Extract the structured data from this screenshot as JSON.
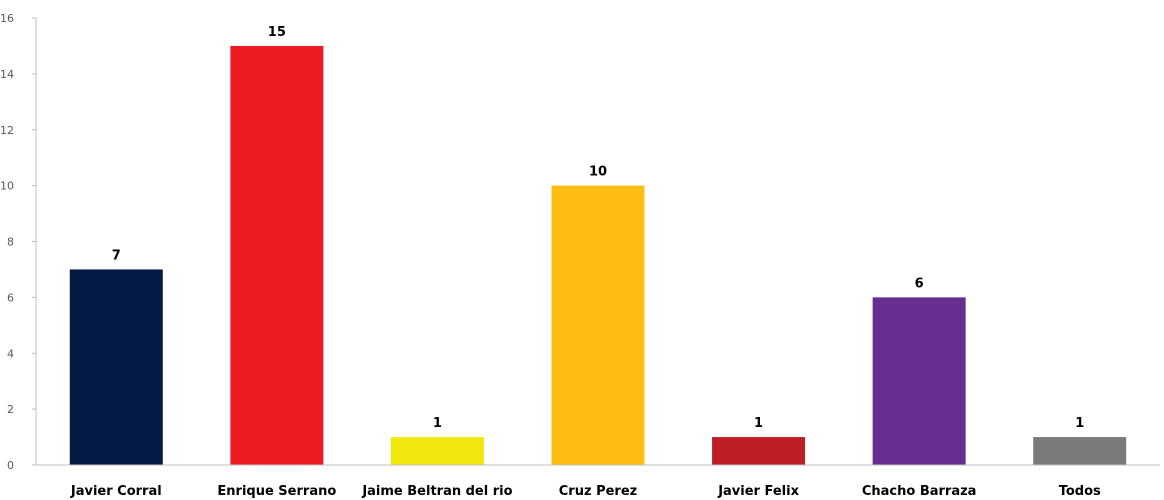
{
  "chart_data": {
    "type": "bar",
    "title": "",
    "xlabel": "",
    "ylabel": "",
    "ylim": [
      0,
      16
    ],
    "yticks": [
      0,
      2,
      4,
      6,
      8,
      10,
      12,
      14,
      16
    ],
    "grid": false,
    "legend": "none",
    "categories": [
      "Javier Corral",
      "Enrique Serrano",
      "Jaime Beltran del rio",
      "Cruz Perez",
      "Javier Felix",
      "Chacho Barraza",
      "Todos"
    ],
    "values": [
      7,
      15,
      1,
      10,
      1,
      6,
      1
    ],
    "data_labels": [
      "7",
      "15",
      "1",
      "10",
      "1",
      "6",
      "1"
    ],
    "colors": [
      "#041a45",
      "#ed1c24",
      "#f2e70c",
      "#fdbd13",
      "#be1e25",
      "#672d91",
      "#7a7a7a"
    ]
  }
}
